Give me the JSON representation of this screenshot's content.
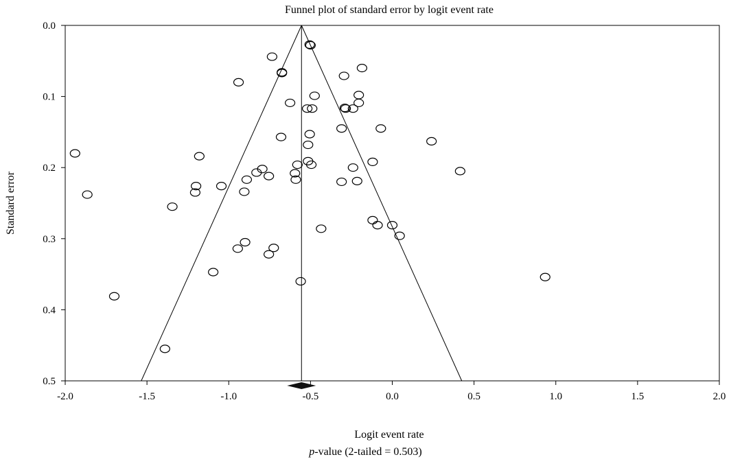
{
  "chart_data": {
    "type": "scatter",
    "title": "Funnel plot of standard error by logit event rate",
    "xlabel": "Logit event rate",
    "ylabel": "Standard error",
    "xlim": [
      -2.0,
      2.0
    ],
    "ylim": [
      0.0,
      0.5
    ],
    "y_inverted": true,
    "x_ticks": [
      "-2.0",
      "-1.5",
      "-1.0",
      "-0.5",
      "0.0",
      "0.5",
      "1.0",
      "1.5",
      "2.0"
    ],
    "y_ticks": [
      "0.0",
      "0.1",
      "0.2",
      "0.3",
      "0.4",
      "0.5"
    ],
    "pooled_estimate": -0.555,
    "funnel_bottom_left": -1.535,
    "funnel_bottom_right": 0.425,
    "grid": false,
    "points": [
      {
        "x": -0.505,
        "y": 0.027
      },
      {
        "x": -0.5,
        "y": 0.028
      },
      {
        "x": -0.735,
        "y": 0.044
      },
      {
        "x": -0.185,
        "y": 0.06
      },
      {
        "x": -0.675,
        "y": 0.067
      },
      {
        "x": -0.675,
        "y": 0.066
      },
      {
        "x": -0.295,
        "y": 0.071
      },
      {
        "x": -0.94,
        "y": 0.08
      },
      {
        "x": -0.475,
        "y": 0.099
      },
      {
        "x": -0.205,
        "y": 0.098
      },
      {
        "x": -0.625,
        "y": 0.109
      },
      {
        "x": -0.205,
        "y": 0.109
      },
      {
        "x": -0.52,
        "y": 0.117
      },
      {
        "x": -0.49,
        "y": 0.117
      },
      {
        "x": -0.285,
        "y": 0.117
      },
      {
        "x": -0.29,
        "y": 0.116
      },
      {
        "x": -0.24,
        "y": 0.117
      },
      {
        "x": -0.31,
        "y": 0.145
      },
      {
        "x": -0.07,
        "y": 0.145
      },
      {
        "x": -0.505,
        "y": 0.153
      },
      {
        "x": -0.68,
        "y": 0.157
      },
      {
        "x": 0.24,
        "y": 0.163
      },
      {
        "x": -0.515,
        "y": 0.168
      },
      {
        "x": -1.94,
        "y": 0.18
      },
      {
        "x": -1.18,
        "y": 0.184
      },
      {
        "x": -0.12,
        "y": 0.192
      },
      {
        "x": -0.515,
        "y": 0.191
      },
      {
        "x": -0.58,
        "y": 0.196
      },
      {
        "x": -0.495,
        "y": 0.196
      },
      {
        "x": -0.24,
        "y": 0.2
      },
      {
        "x": -0.795,
        "y": 0.202
      },
      {
        "x": -0.83,
        "y": 0.207
      },
      {
        "x": 0.415,
        "y": 0.205
      },
      {
        "x": -0.595,
        "y": 0.208
      },
      {
        "x": -0.755,
        "y": 0.212
      },
      {
        "x": -0.59,
        "y": 0.217
      },
      {
        "x": -0.89,
        "y": 0.217
      },
      {
        "x": -0.31,
        "y": 0.22
      },
      {
        "x": -0.215,
        "y": 0.219
      },
      {
        "x": -1.2,
        "y": 0.226
      },
      {
        "x": -1.045,
        "y": 0.226
      },
      {
        "x": -1.205,
        "y": 0.235
      },
      {
        "x": -0.905,
        "y": 0.234
      },
      {
        "x": -1.865,
        "y": 0.238
      },
      {
        "x": -1.345,
        "y": 0.255
      },
      {
        "x": -0.12,
        "y": 0.274
      },
      {
        "x": 0.0,
        "y": 0.281
      },
      {
        "x": -0.09,
        "y": 0.281
      },
      {
        "x": -0.435,
        "y": 0.286
      },
      {
        "x": 0.045,
        "y": 0.296
      },
      {
        "x": -0.9,
        "y": 0.305
      },
      {
        "x": -0.945,
        "y": 0.314
      },
      {
        "x": -0.725,
        "y": 0.313
      },
      {
        "x": -0.755,
        "y": 0.322
      },
      {
        "x": -1.095,
        "y": 0.347
      },
      {
        "x": 0.935,
        "y": 0.354
      },
      {
        "x": -0.56,
        "y": 0.36
      },
      {
        "x": -1.7,
        "y": 0.381
      },
      {
        "x": -1.39,
        "y": 0.455
      }
    ]
  },
  "footer": {
    "p_symbol": "p",
    "p_text": "-value (2-tailed = 0.503)"
  }
}
